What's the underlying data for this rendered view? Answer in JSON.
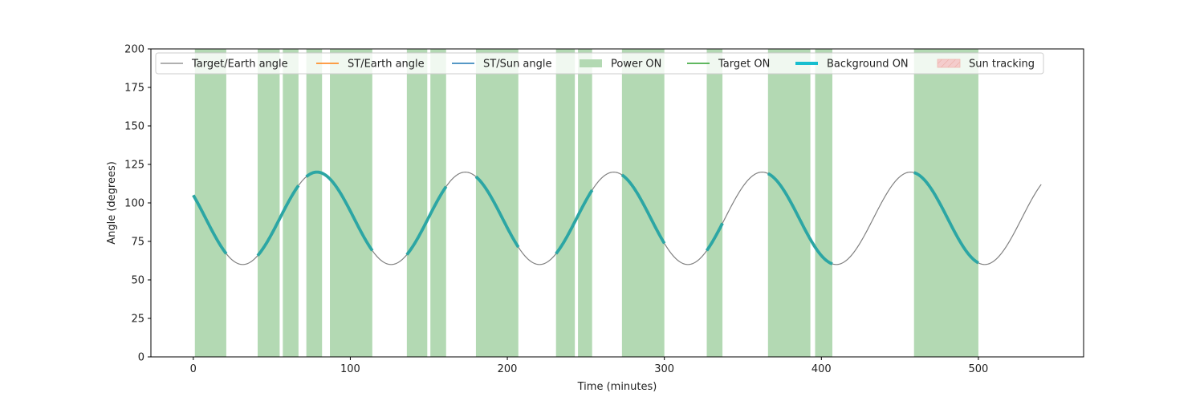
{
  "chart_data": {
    "type": "line",
    "xlabel": "Time (minutes)",
    "ylabel": "Angle (degrees)",
    "xlim": [
      -27,
      567
    ],
    "ylim": [
      0,
      200
    ],
    "xticks": [
      0,
      100,
      200,
      300,
      400,
      500
    ],
    "yticks": [
      0,
      25,
      50,
      75,
      100,
      125,
      150,
      175,
      200
    ],
    "grid": false,
    "legend_position": "top",
    "colors": {
      "target_earth": "#808080",
      "st_earth": "#ff7f0e",
      "st_sun": "#1f77b4",
      "power_on": "#b3d9b3",
      "target_on": "#2ca02c",
      "background_on": "#17becf",
      "background_on_drawn": "#2ca6a4",
      "sun_tracking": "#f4cccc"
    },
    "legend": [
      {
        "label": "Target/Earth angle",
        "kind": "thin-line",
        "color": "#808080"
      },
      {
        "label": "ST/Earth angle",
        "kind": "line",
        "color": "#ff7f0e"
      },
      {
        "label": "ST/Sun angle",
        "kind": "line",
        "color": "#1f77b4"
      },
      {
        "label": "Power ON",
        "kind": "patch",
        "color": "#b3d9b3"
      },
      {
        "label": "Target ON",
        "kind": "line",
        "color": "#2ca02c"
      },
      {
        "label": "Background ON",
        "kind": "thick-line",
        "color": "#17becf"
      },
      {
        "label": "Sun tracking",
        "kind": "hatch",
        "color": "#f4cccc"
      }
    ],
    "target_earth_angle": {
      "name": "Target/Earth angle",
      "mean": 90,
      "amplitude": 30,
      "period_min": 94.5,
      "min_at_min": 31.5,
      "x_range": [
        0,
        540
      ]
    },
    "power_on_intervals": [
      [
        1,
        21
      ],
      [
        41,
        55
      ],
      [
        57,
        67
      ],
      [
        72,
        82
      ],
      [
        87,
        114
      ],
      [
        136,
        149
      ],
      [
        151,
        161
      ],
      [
        180,
        207
      ],
      [
        231,
        243
      ],
      [
        245,
        254
      ],
      [
        273,
        300
      ],
      [
        327,
        337
      ],
      [
        366,
        393
      ],
      [
        396,
        407
      ],
      [
        459,
        500
      ]
    ],
    "background_on_intervals": [
      [
        0,
        21
      ],
      [
        41,
        67
      ],
      [
        72,
        114
      ],
      [
        136,
        161
      ],
      [
        180,
        207
      ],
      [
        231,
        254
      ],
      [
        273,
        300
      ],
      [
        327,
        337
      ],
      [
        366,
        407
      ],
      [
        459,
        500
      ]
    ]
  }
}
